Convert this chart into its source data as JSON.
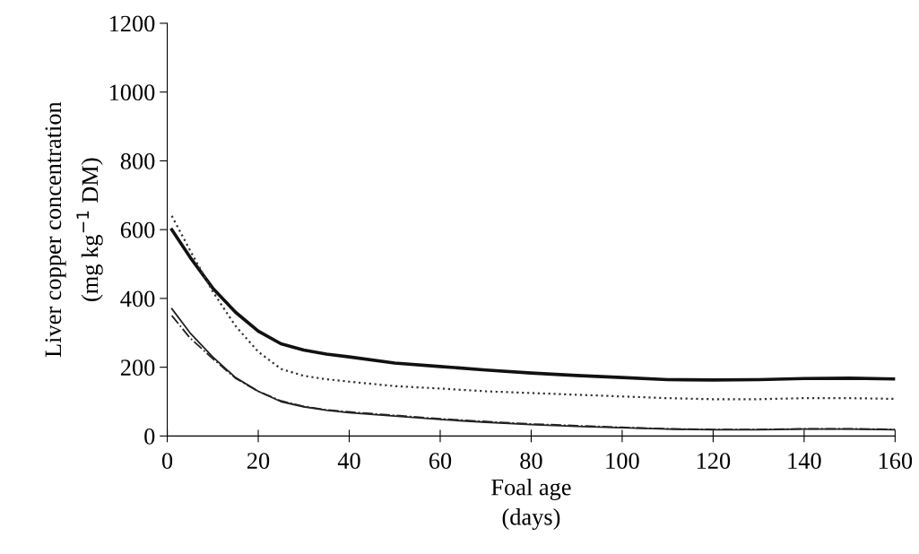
{
  "chart_data": {
    "type": "line",
    "xlabel": "Foal age\n(days)",
    "ylabel": "Liver copper concentration\n(mg kg$^{−1}$ DM)",
    "xlim": [
      0,
      160
    ],
    "ylim": [
      0,
      1200
    ],
    "xticks": [
      0,
      20,
      40,
      60,
      80,
      100,
      120,
      140,
      160
    ],
    "yticks": [
      0,
      200,
      400,
      600,
      800,
      1000,
      1200
    ],
    "grid": false,
    "legend": false,
    "marker": "none",
    "series": [
      {
        "color": "#111111",
        "line_style": "solid",
        "x": [
          1,
          5,
          10,
          15,
          20,
          25,
          30,
          35,
          40,
          50,
          60,
          70,
          80,
          90,
          100,
          110,
          120,
          130,
          140,
          150,
          160
        ],
        "values": [
          600,
          520,
          430,
          360,
          305,
          268,
          250,
          238,
          230,
          212,
          202,
          192,
          183,
          176,
          170,
          164,
          163,
          164,
          167,
          168,
          166
        ]
      },
      {
        "color": "#333333",
        "line_style": "dotted",
        "x": [
          1,
          5,
          10,
          15,
          20,
          25,
          30,
          35,
          40,
          50,
          60,
          70,
          80,
          90,
          100,
          110,
          120,
          130,
          140,
          150,
          160
        ],
        "values": [
          640,
          540,
          420,
          320,
          245,
          195,
          175,
          165,
          158,
          145,
          138,
          130,
          125,
          120,
          115,
          110,
          107,
          107,
          110,
          110,
          108
        ]
      },
      {
        "color": "#222222",
        "line_style": "solid",
        "x": [
          1,
          5,
          10,
          15,
          20,
          25,
          30,
          35,
          40,
          50,
          60,
          70,
          80,
          90,
          100,
          110,
          120,
          130,
          140,
          150,
          160
        ],
        "values": [
          370,
          300,
          230,
          170,
          130,
          100,
          85,
          75,
          68,
          58,
          48,
          40,
          33,
          28,
          24,
          20,
          18,
          18,
          20,
          20,
          18
        ]
      },
      {
        "color": "#222222",
        "line_style": "dashdot",
        "x": [
          1,
          5,
          10,
          15,
          20,
          25,
          30,
          35,
          40,
          50,
          60,
          70,
          80,
          90,
          100,
          110,
          120,
          130,
          140,
          150,
          160
        ],
        "values": [
          350,
          285,
          225,
          168,
          130,
          102,
          86,
          76,
          70,
          60,
          50,
          42,
          35,
          30,
          25,
          21,
          19,
          19,
          21,
          21,
          19
        ]
      }
    ]
  }
}
